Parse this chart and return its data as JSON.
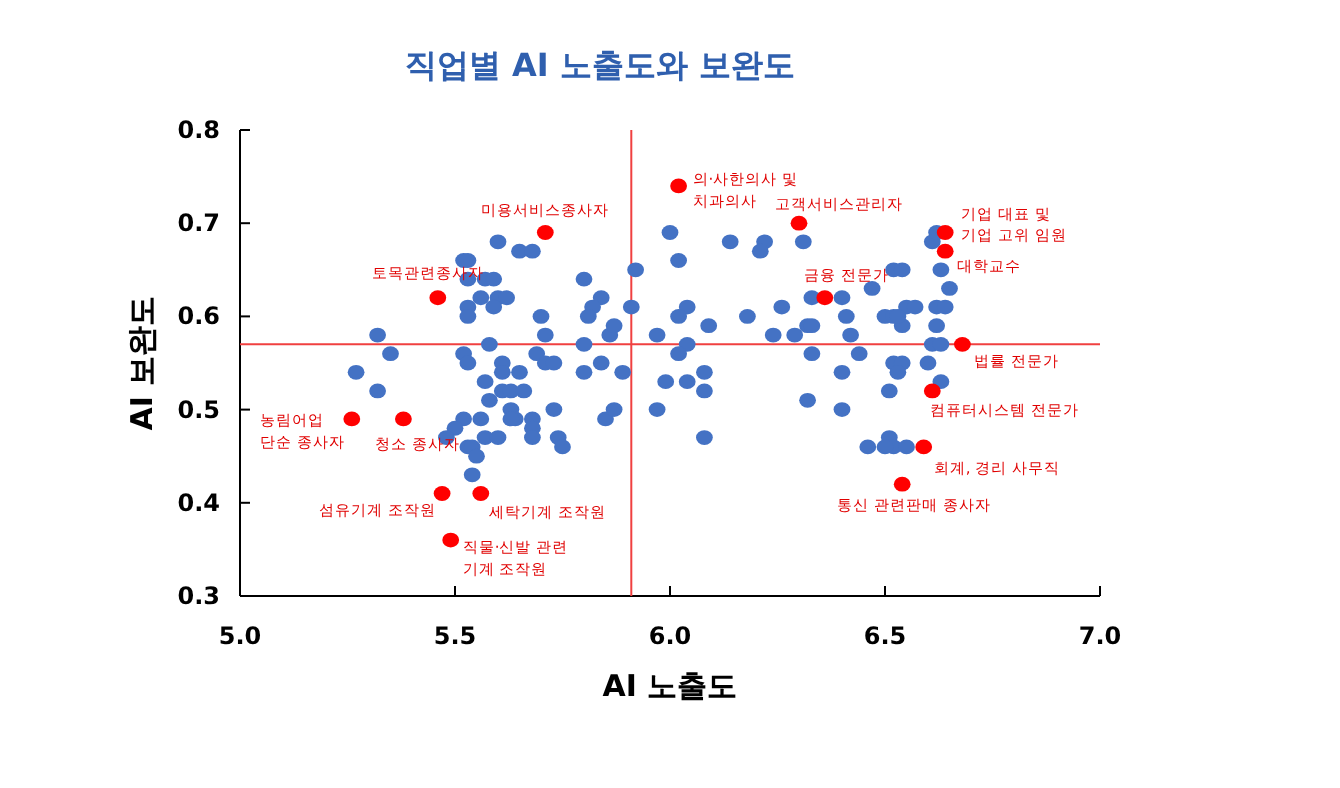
{
  "chart_data": {
    "type": "scatter",
    "title": "직업별 AI 노출도와 보완도",
    "xlabel": "AI 노출도",
    "ylabel": "AI 보완도",
    "xlim": [
      5.0,
      7.0
    ],
    "ylim": [
      0.3,
      0.8
    ],
    "xticks": [
      {
        "value": 5,
        "label": "5.0"
      },
      {
        "value": 5.5,
        "label": "5.5"
      },
      {
        "value": 6,
        "label": "6.0"
      },
      {
        "value": 6.5,
        "label": "6.5"
      },
      {
        "value": 7,
        "label": "7.0"
      }
    ],
    "yticks": [
      0.3,
      0.4,
      0.5,
      0.6,
      0.7,
      0.8
    ],
    "marker": "circle",
    "grid": false,
    "series": [
      {
        "color": "#4472c4",
        "x": [
          5.6,
          5.65,
          5.68,
          5.52,
          5.53,
          5.53,
          5.57,
          5.59,
          5.6,
          5.56,
          5.62,
          5.59,
          5.53,
          5.53,
          5.7,
          5.8,
          5.84,
          5.82,
          5.81,
          5.91,
          5.92,
          5.86,
          5.87,
          5.71,
          5.32,
          5.58,
          5.8,
          5.35,
          5.52,
          5.53,
          5.61,
          5.69,
          5.71,
          5.73,
          5.84,
          5.89,
          5.8,
          5.27,
          5.65,
          5.61,
          5.57,
          5.61,
          5.63,
          5.66,
          5.32,
          5.58,
          5.63,
          5.64,
          5.73,
          5.85,
          5.87,
          5.52,
          5.56,
          5.63,
          5.68,
          5.68,
          5.57,
          5.6,
          5.68,
          5.74,
          5.75,
          5.5,
          5.48,
          5.53,
          5.54,
          5.55,
          5.54,
          6.0,
          6.02,
          6.04,
          6.02,
          6.09,
          5.97,
          6.04,
          6.02,
          5.99,
          6.04,
          6.08,
          6.08,
          5.97,
          6.08,
          6.14,
          6.22,
          6.21,
          6.31,
          6.26,
          6.18,
          6.24,
          6.29,
          6.32,
          6.33,
          6.33,
          6.4,
          6.41,
          6.42,
          6.44,
          6.33,
          6.4,
          6.32,
          6.4,
          6.47,
          6.52,
          6.54,
          6.5,
          6.52,
          6.55,
          6.57,
          6.54,
          6.53,
          6.61,
          6.62,
          6.63,
          6.65,
          6.62,
          6.64,
          6.62,
          6.61,
          6.63,
          6.52,
          6.54,
          6.6,
          6.53,
          6.63,
          6.51,
          6.46,
          6.51,
          6.52,
          6.5,
          6.55
        ],
        "values": [
          0.68,
          0.67,
          0.67,
          0.66,
          0.66,
          0.64,
          0.64,
          0.64,
          0.62,
          0.62,
          0.62,
          0.61,
          0.61,
          0.6,
          0.6,
          0.64,
          0.62,
          0.61,
          0.6,
          0.61,
          0.65,
          0.58,
          0.59,
          0.58,
          0.58,
          0.57,
          0.57,
          0.56,
          0.56,
          0.55,
          0.55,
          0.56,
          0.55,
          0.55,
          0.55,
          0.54,
          0.54,
          0.54,
          0.54,
          0.54,
          0.53,
          0.52,
          0.52,
          0.52,
          0.52,
          0.51,
          0.5,
          0.49,
          0.5,
          0.49,
          0.5,
          0.49,
          0.49,
          0.49,
          0.49,
          0.48,
          0.47,
          0.47,
          0.47,
          0.47,
          0.46,
          0.48,
          0.47,
          0.46,
          0.46,
          0.45,
          0.43,
          0.69,
          0.66,
          0.61,
          0.6,
          0.59,
          0.58,
          0.57,
          0.56,
          0.53,
          0.53,
          0.54,
          0.52,
          0.5,
          0.47,
          0.68,
          0.68,
          0.67,
          0.68,
          0.61,
          0.6,
          0.58,
          0.58,
          0.59,
          0.59,
          0.62,
          0.62,
          0.6,
          0.58,
          0.56,
          0.56,
          0.54,
          0.51,
          0.5,
          0.63,
          0.65,
          0.65,
          0.6,
          0.6,
          0.61,
          0.61,
          0.59,
          0.6,
          0.68,
          0.69,
          0.65,
          0.63,
          0.61,
          0.61,
          0.59,
          0.57,
          0.57,
          0.55,
          0.55,
          0.55,
          0.54,
          0.53,
          0.52,
          0.46,
          0.47,
          0.46,
          0.46,
          0.46
        ]
      },
      {
        "color": "#ff0000",
        "x": [
          5.71,
          5.46,
          5.26,
          5.38,
          5.47,
          5.56,
          5.49,
          6.02,
          6.3,
          6.36,
          6.64,
          6.64,
          6.68,
          6.61,
          6.59,
          6.54
        ],
        "values": [
          0.69,
          0.62,
          0.49,
          0.49,
          0.41,
          0.41,
          0.36,
          0.74,
          0.7,
          0.62,
          0.69,
          0.67,
          0.57,
          0.52,
          0.46,
          0.42
        ]
      }
    ],
    "annotations": [
      {
        "text": "미용서비스종사자",
        "x": 5.71,
        "y": 0.69
      },
      {
        "text": "토목관련종사자",
        "x": 5.46,
        "y": 0.62
      },
      {
        "text": "농림어업\n단순 종사자",
        "x": 5.26,
        "y": 0.49
      },
      {
        "text": "청소 종사자",
        "x": 5.38,
        "y": 0.49
      },
      {
        "text": "섬유기계 조작원",
        "x": 5.47,
        "y": 0.41
      },
      {
        "text": "세탁기계 조작원",
        "x": 5.56,
        "y": 0.41
      },
      {
        "text": "직물·신발 관련\n기계 조작원",
        "x": 5.49,
        "y": 0.36
      },
      {
        "text": "의·사한의사 및\n치과의사",
        "x": 6.02,
        "y": 0.74
      },
      {
        "text": "고객서비스관리자",
        "x": 6.3,
        "y": 0.7
      },
      {
        "text": "금융 전문가",
        "x": 6.36,
        "y": 0.62
      },
      {
        "text": "기업 대표 및\n기업 고위 임원",
        "x": 6.64,
        "y": 0.69
      },
      {
        "text": "대학교수",
        "x": 6.64,
        "y": 0.67
      },
      {
        "text": "법률 전문가",
        "x": 6.68,
        "y": 0.57
      },
      {
        "text": "컴퓨터시스템 전문가",
        "x": 6.61,
        "y": 0.52
      },
      {
        "text": "회계, 경리 사무직",
        "x": 6.59,
        "y": 0.46
      },
      {
        "text": "통신 관련판매 종사자",
        "x": 6.54,
        "y": 0.42
      }
    ],
    "ref_lines": [
      {
        "axis": "x",
        "value": 5.91,
        "color": "#f04040"
      },
      {
        "axis": "y",
        "value": 0.57,
        "color": "#f04040"
      }
    ]
  }
}
